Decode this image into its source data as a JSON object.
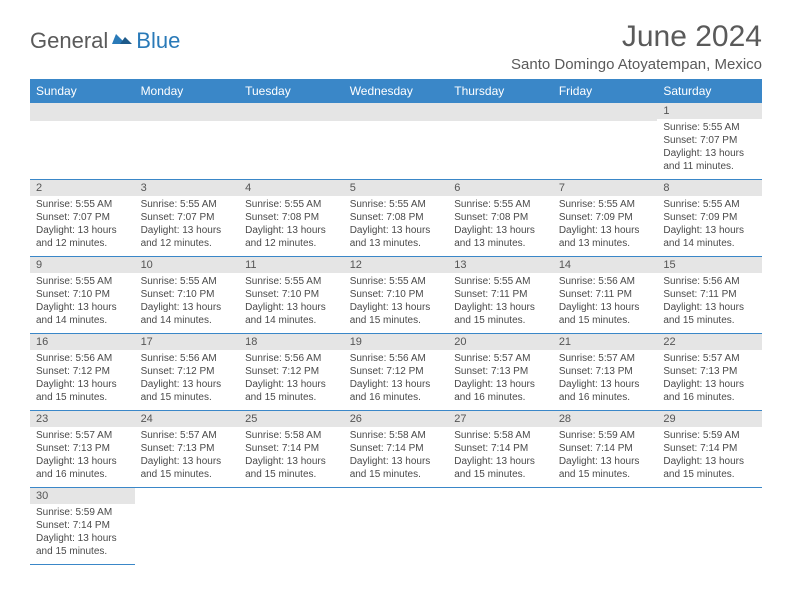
{
  "brand": {
    "part1": "General",
    "part2": "Blue"
  },
  "title": "June 2024",
  "location": "Santo Domingo Atoyatempan, Mexico",
  "dayHeaders": [
    "Sunday",
    "Monday",
    "Tuesday",
    "Wednesday",
    "Thursday",
    "Friday",
    "Saturday"
  ],
  "colors": {
    "headerBg": "#3a87c8",
    "headerText": "#ffffff",
    "dayNumBg": "#e5e5e5",
    "borderColor": "#3a87c8",
    "titleColor": "#5a5a5a",
    "bodyText": "#4a4a4a"
  },
  "weeks": [
    [
      null,
      null,
      null,
      null,
      null,
      null,
      {
        "n": "1",
        "sr": "5:55 AM",
        "ss": "7:07 PM",
        "dl": "13 hours and 11 minutes."
      }
    ],
    [
      {
        "n": "2",
        "sr": "5:55 AM",
        "ss": "7:07 PM",
        "dl": "13 hours and 12 minutes."
      },
      {
        "n": "3",
        "sr": "5:55 AM",
        "ss": "7:07 PM",
        "dl": "13 hours and 12 minutes."
      },
      {
        "n": "4",
        "sr": "5:55 AM",
        "ss": "7:08 PM",
        "dl": "13 hours and 12 minutes."
      },
      {
        "n": "5",
        "sr": "5:55 AM",
        "ss": "7:08 PM",
        "dl": "13 hours and 13 minutes."
      },
      {
        "n": "6",
        "sr": "5:55 AM",
        "ss": "7:08 PM",
        "dl": "13 hours and 13 minutes."
      },
      {
        "n": "7",
        "sr": "5:55 AM",
        "ss": "7:09 PM",
        "dl": "13 hours and 13 minutes."
      },
      {
        "n": "8",
        "sr": "5:55 AM",
        "ss": "7:09 PM",
        "dl": "13 hours and 14 minutes."
      }
    ],
    [
      {
        "n": "9",
        "sr": "5:55 AM",
        "ss": "7:10 PM",
        "dl": "13 hours and 14 minutes."
      },
      {
        "n": "10",
        "sr": "5:55 AM",
        "ss": "7:10 PM",
        "dl": "13 hours and 14 minutes."
      },
      {
        "n": "11",
        "sr": "5:55 AM",
        "ss": "7:10 PM",
        "dl": "13 hours and 14 minutes."
      },
      {
        "n": "12",
        "sr": "5:55 AM",
        "ss": "7:10 PM",
        "dl": "13 hours and 15 minutes."
      },
      {
        "n": "13",
        "sr": "5:55 AM",
        "ss": "7:11 PM",
        "dl": "13 hours and 15 minutes."
      },
      {
        "n": "14",
        "sr": "5:56 AM",
        "ss": "7:11 PM",
        "dl": "13 hours and 15 minutes."
      },
      {
        "n": "15",
        "sr": "5:56 AM",
        "ss": "7:11 PM",
        "dl": "13 hours and 15 minutes."
      }
    ],
    [
      {
        "n": "16",
        "sr": "5:56 AM",
        "ss": "7:12 PM",
        "dl": "13 hours and 15 minutes."
      },
      {
        "n": "17",
        "sr": "5:56 AM",
        "ss": "7:12 PM",
        "dl": "13 hours and 15 minutes."
      },
      {
        "n": "18",
        "sr": "5:56 AM",
        "ss": "7:12 PM",
        "dl": "13 hours and 15 minutes."
      },
      {
        "n": "19",
        "sr": "5:56 AM",
        "ss": "7:12 PM",
        "dl": "13 hours and 16 minutes."
      },
      {
        "n": "20",
        "sr": "5:57 AM",
        "ss": "7:13 PM",
        "dl": "13 hours and 16 minutes."
      },
      {
        "n": "21",
        "sr": "5:57 AM",
        "ss": "7:13 PM",
        "dl": "13 hours and 16 minutes."
      },
      {
        "n": "22",
        "sr": "5:57 AM",
        "ss": "7:13 PM",
        "dl": "13 hours and 16 minutes."
      }
    ],
    [
      {
        "n": "23",
        "sr": "5:57 AM",
        "ss": "7:13 PM",
        "dl": "13 hours and 16 minutes."
      },
      {
        "n": "24",
        "sr": "5:57 AM",
        "ss": "7:13 PM",
        "dl": "13 hours and 15 minutes."
      },
      {
        "n": "25",
        "sr": "5:58 AM",
        "ss": "7:14 PM",
        "dl": "13 hours and 15 minutes."
      },
      {
        "n": "26",
        "sr": "5:58 AM",
        "ss": "7:14 PM",
        "dl": "13 hours and 15 minutes."
      },
      {
        "n": "27",
        "sr": "5:58 AM",
        "ss": "7:14 PM",
        "dl": "13 hours and 15 minutes."
      },
      {
        "n": "28",
        "sr": "5:59 AM",
        "ss": "7:14 PM",
        "dl": "13 hours and 15 minutes."
      },
      {
        "n": "29",
        "sr": "5:59 AM",
        "ss": "7:14 PM",
        "dl": "13 hours and 15 minutes."
      }
    ],
    [
      {
        "n": "30",
        "sr": "5:59 AM",
        "ss": "7:14 PM",
        "dl": "13 hours and 15 minutes."
      },
      null,
      null,
      null,
      null,
      null,
      null
    ]
  ],
  "labels": {
    "sunrise": "Sunrise:",
    "sunset": "Sunset:",
    "daylight": "Daylight:"
  }
}
